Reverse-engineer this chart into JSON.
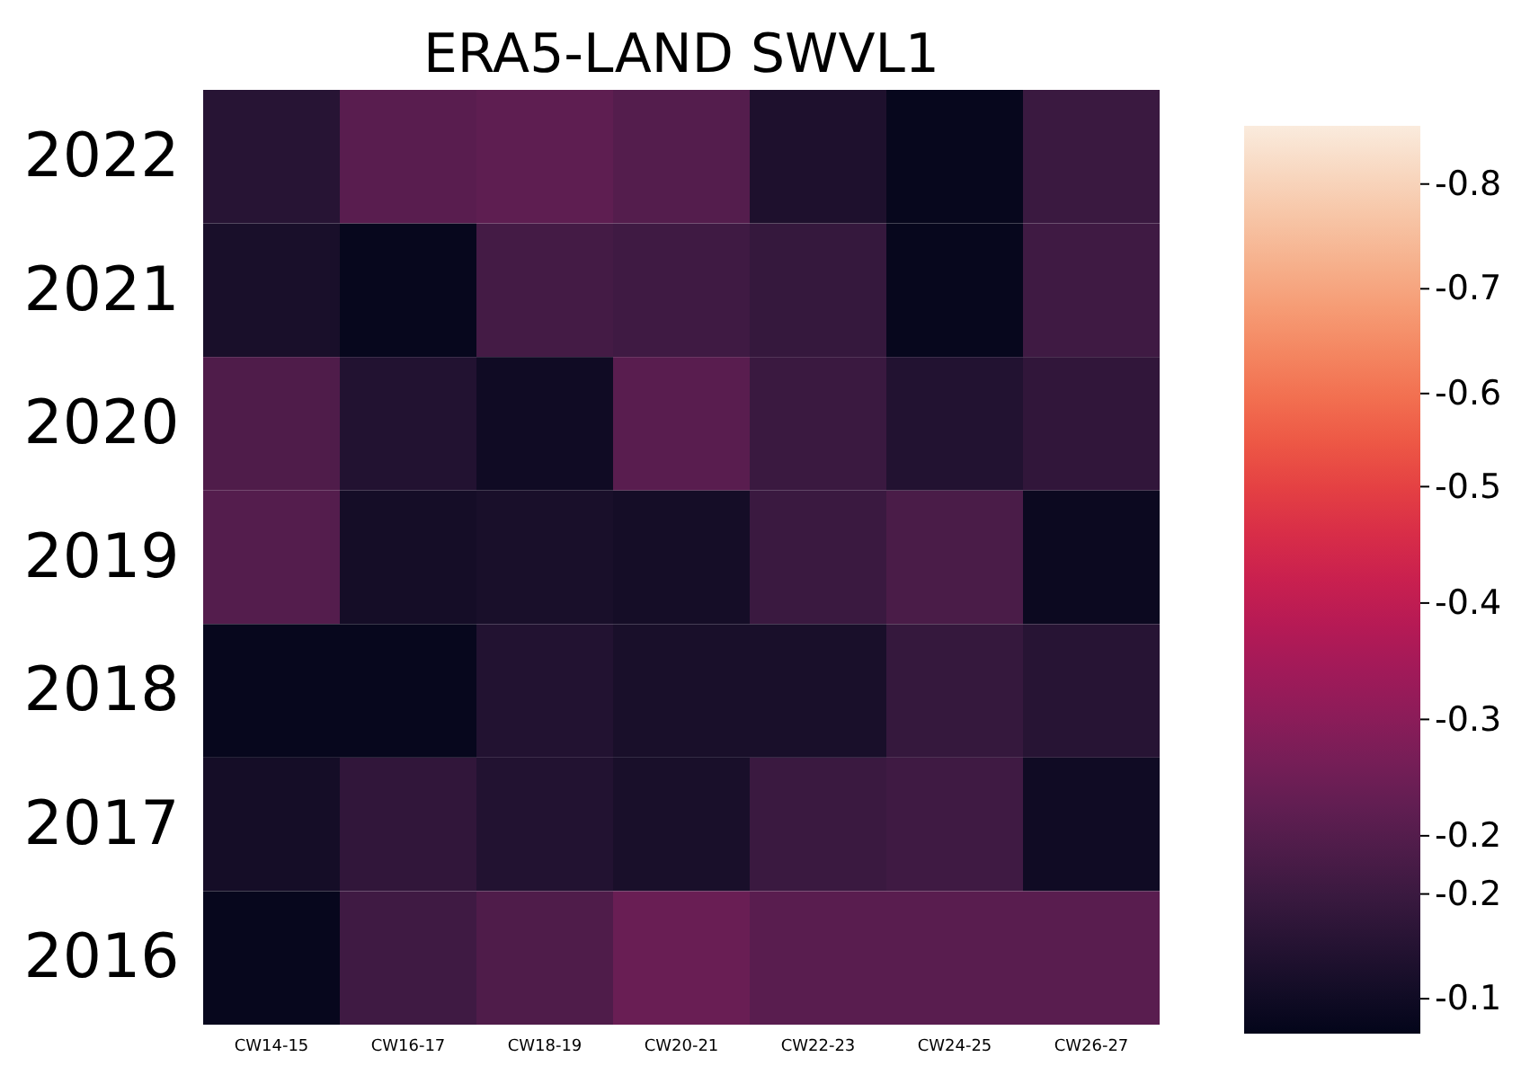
{
  "chart_data": {
    "type": "heatmap",
    "title": "ERA5-LAND SWVL1",
    "categories": [
      "CW14-15",
      "CW16-17",
      "CW18-19",
      "CW20-21",
      "CW22-23",
      "CW24-25",
      "CW26-27"
    ],
    "y_categories": [
      "2022",
      "2021",
      "2020",
      "2019",
      "2018",
      "2017",
      "2016"
    ],
    "cells": [
      [
        -0.15,
        -0.25,
        -0.26,
        -0.24,
        -0.13,
        -0.08,
        -0.19
      ],
      [
        -0.12,
        -0.08,
        -0.21,
        -0.2,
        -0.18,
        -0.08,
        -0.2
      ],
      [
        -0.23,
        -0.14,
        -0.1,
        -0.25,
        -0.19,
        -0.14,
        -0.17
      ],
      [
        -0.24,
        -0.11,
        -0.12,
        -0.11,
        -0.19,
        -0.22,
        -0.09
      ],
      [
        -0.08,
        -0.08,
        -0.14,
        -0.12,
        -0.12,
        -0.18,
        -0.15
      ],
      [
        -0.11,
        -0.17,
        -0.14,
        -0.12,
        -0.19,
        -0.2,
        -0.1
      ],
      [
        -0.08,
        -0.2,
        -0.23,
        -0.28,
        -0.25,
        -0.25,
        -0.25
      ]
    ],
    "clim": [
      -0.07,
      -0.85
    ],
    "cticks": [
      {
        "value": -0.8,
        "label": "-0.8"
      },
      {
        "value": -0.71,
        "label": "-0.7"
      },
      {
        "value": -0.62,
        "label": "-0.6"
      },
      {
        "value": -0.54,
        "label": "-0.5"
      },
      {
        "value": -0.44,
        "label": "-0.4"
      },
      {
        "value": -0.34,
        "label": "-0.3"
      },
      {
        "value": -0.24,
        "label": "-0.2"
      },
      {
        "value": -0.19,
        "label": "-0.2"
      },
      {
        "value": -0.1,
        "label": "-0.1"
      }
    ]
  }
}
